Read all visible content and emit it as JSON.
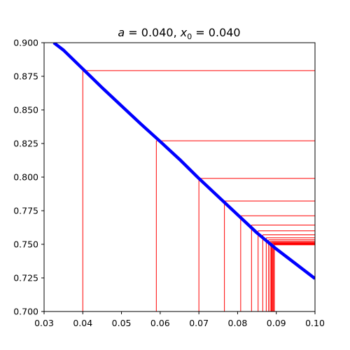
{
  "chart_data": {
    "type": "line",
    "title": "a = 0.040, x₀ = 0.040",
    "title_parts": {
      "a_label": "a",
      "a_eq": " = 0.040, ",
      "x_label": "x",
      "x_sub": "0",
      "x_eq": " = 0.040"
    },
    "xlim": [
      0.03,
      0.1
    ],
    "ylim": [
      0.7,
      0.9
    ],
    "grid": false,
    "x_ticks": [
      "0.03",
      "0.04",
      "0.05",
      "0.06",
      "0.07",
      "0.08",
      "0.09",
      "0.10"
    ],
    "y_ticks": [
      "0.700",
      "0.725",
      "0.750",
      "0.775",
      "0.800",
      "0.825",
      "0.850",
      "0.875",
      "0.900"
    ],
    "series": [
      {
        "color": "#0000ff",
        "x": [
          0.0325,
          0.035,
          0.04,
          0.045,
          0.05,
          0.055,
          0.06,
          0.065,
          0.07,
          0.075,
          0.08,
          0.085,
          0.09,
          0.095,
          0.1
        ],
        "y": [
          0.9,
          0.8945,
          0.8805,
          0.8665,
          0.853,
          0.8395,
          0.8265,
          0.8132,
          0.799,
          0.7855,
          0.772,
          0.7585,
          0.7465,
          0.7355,
          0.7245
        ]
      }
    ],
    "cobweb": {
      "color": "#ff0000",
      "x_end": 0.1,
      "points": [
        {
          "x": 0.04,
          "y": 0.8792
        },
        {
          "x": 0.059,
          "y": 0.827
        },
        {
          "x": 0.07,
          "y": 0.799
        },
        {
          "x": 0.0766,
          "y": 0.7822
        },
        {
          "x": 0.0808,
          "y": 0.7712
        },
        {
          "x": 0.0836,
          "y": 0.7643
        },
        {
          "x": 0.0853,
          "y": 0.76
        },
        {
          "x": 0.0865,
          "y": 0.757
        },
        {
          "x": 0.0874,
          "y": 0.7548
        },
        {
          "x": 0.088,
          "y": 0.7533
        },
        {
          "x": 0.0884,
          "y": 0.7522
        },
        {
          "x": 0.0887,
          "y": 0.7515
        },
        {
          "x": 0.0889,
          "y": 0.751
        },
        {
          "x": 0.0891,
          "y": 0.7505
        },
        {
          "x": 0.0893,
          "y": 0.75
        },
        {
          "x": 0.0895,
          "y": 0.7496
        }
      ]
    }
  }
}
